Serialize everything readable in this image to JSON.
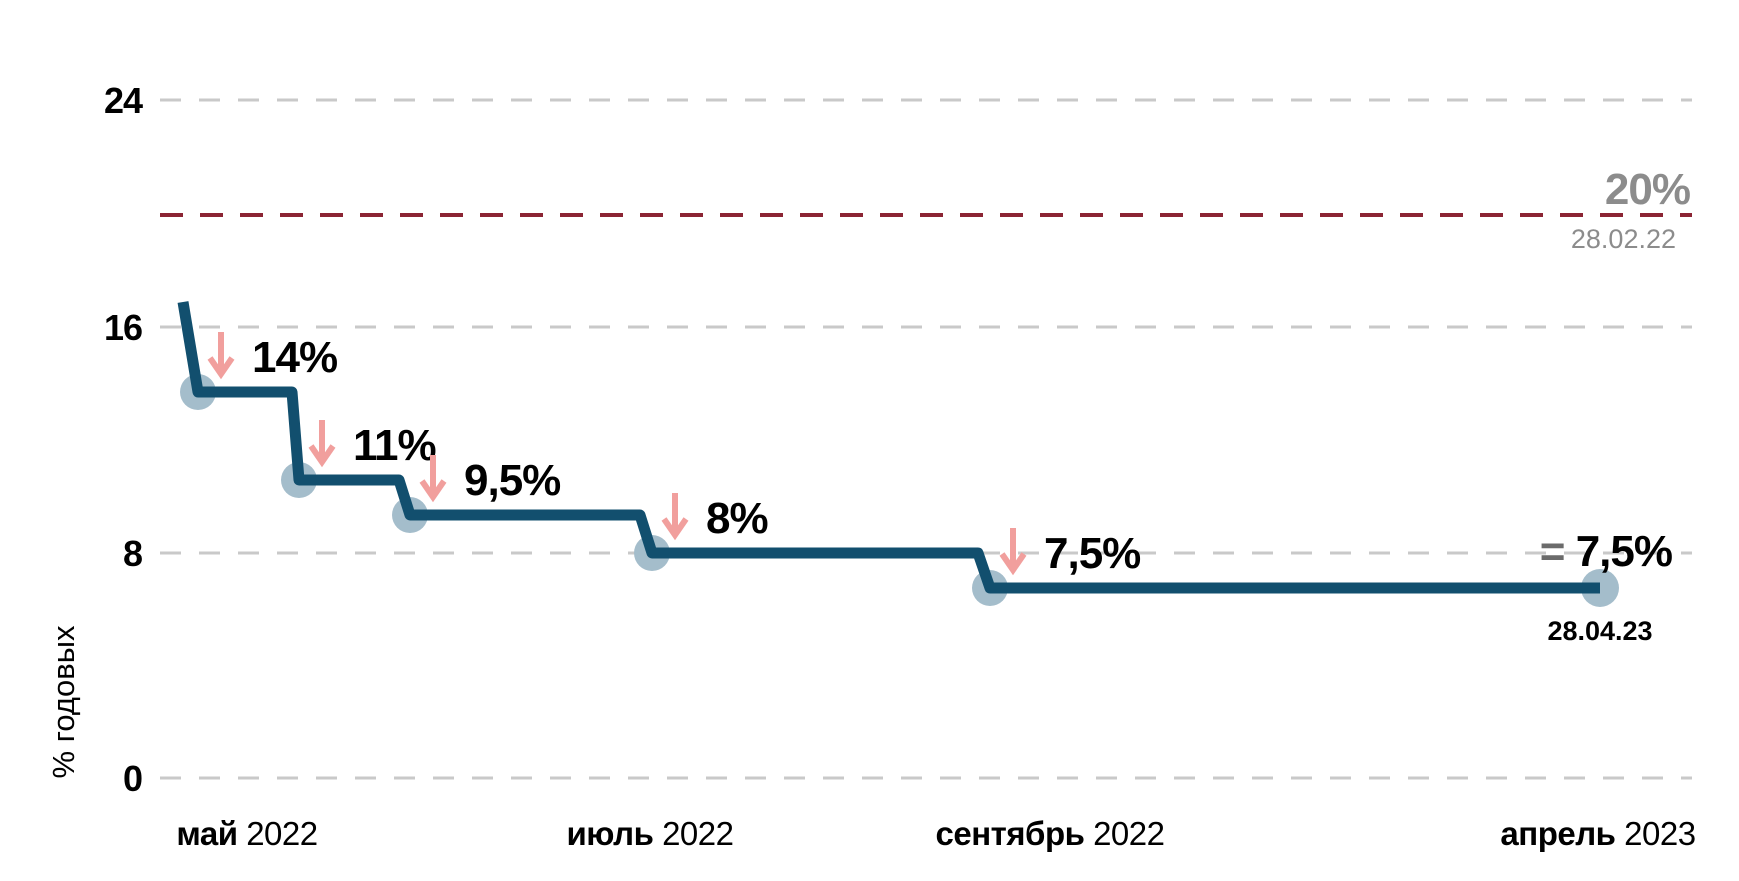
{
  "chart_data": {
    "type": "line",
    "subtype": "step",
    "title": "",
    "ylabel": "% годовых",
    "ylim": [
      0,
      26
    ],
    "y_ticks": [
      {
        "value": 24,
        "label": "24"
      },
      {
        "value": 16,
        "label": "16"
      },
      {
        "value": 8,
        "label": "8"
      },
      {
        "value": 0,
        "label": "0"
      }
    ],
    "x_tick_labels": [
      {
        "month": "май",
        "year": "2022"
      },
      {
        "month": "июль",
        "year": "2022"
      },
      {
        "month": "сентябрь",
        "year": "2022"
      },
      {
        "month": "апрель",
        "year": "2023"
      }
    ],
    "grid": "dashed horizontal",
    "legend": "none",
    "reference_line": {
      "value": 20,
      "label": "20%",
      "date": "28.02.22",
      "style": "dashed"
    },
    "series": [
      {
        "start_value": 17,
        "steps": [
          {
            "label": "14%",
            "value": 14
          },
          {
            "label": "11%",
            "value": 11
          },
          {
            "label": "9,5%",
            "value": 9.5
          },
          {
            "label": "8%",
            "value": 8
          },
          {
            "label": "7,5%",
            "value": 7.5
          }
        ],
        "end": {
          "equals_sign": "=",
          "value_label": "7,5%",
          "value": 7.5,
          "date": "28.04.23"
        }
      }
    ],
    "colors": {
      "line": "#124f6e",
      "marker": "#a4bdcb",
      "arrow": "#f19f9d",
      "reference_line": "#8b2433",
      "gridline": "#c9c9c9",
      "muted_text": "#8c8c8c",
      "equals_sign": "#6b6b6b",
      "text": "#000000"
    }
  }
}
